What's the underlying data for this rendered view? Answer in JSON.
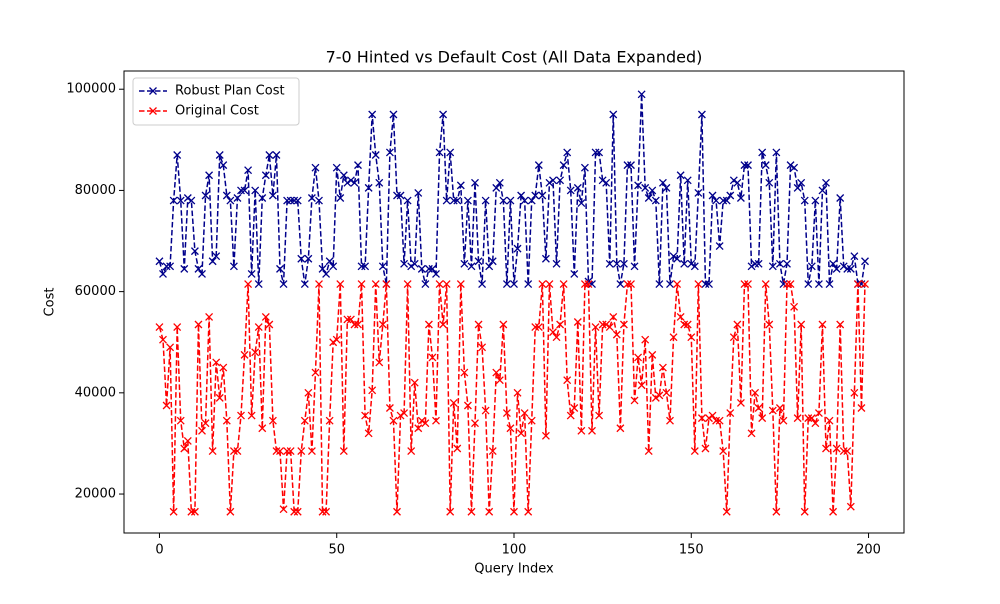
{
  "chart_data": {
    "type": "line",
    "title": "7-0 Hinted vs Default Cost (All Data Expanded)",
    "x_label": "Query Index",
    "y_label": "Cost",
    "x": [
      0,
      1,
      2,
      3,
      4,
      5,
      6,
      7,
      8,
      9,
      10,
      11,
      12,
      13,
      14,
      15,
      16,
      17,
      18,
      19,
      20,
      21,
      22,
      23,
      24,
      25,
      26,
      27,
      28,
      29,
      30,
      31,
      32,
      33,
      34,
      35,
      36,
      37,
      38,
      39,
      40,
      41,
      42,
      43,
      44,
      45,
      46,
      47,
      48,
      49,
      50,
      51,
      52,
      53,
      54,
      55,
      56,
      57,
      58,
      59,
      60,
      61,
      62,
      63,
      64,
      65,
      66,
      67,
      68,
      69,
      70,
      71,
      72,
      73,
      74,
      75,
      76,
      77,
      78,
      79,
      80,
      81,
      82,
      83,
      84,
      85,
      86,
      87,
      88,
      89,
      90,
      91,
      92,
      93,
      94,
      95,
      96,
      97,
      98,
      99,
      100,
      101,
      102,
      103,
      104,
      105,
      106,
      107,
      108,
      109,
      110,
      111,
      112,
      113,
      114,
      115,
      116,
      117,
      118,
      119,
      120,
      121,
      122,
      123,
      124,
      125,
      126,
      127,
      128,
      129,
      130,
      131,
      132,
      133,
      134,
      135,
      136,
      137,
      138,
      139,
      140,
      141,
      142,
      143,
      144,
      145,
      146,
      147,
      148,
      149,
      150,
      151,
      152,
      153,
      154,
      155,
      156,
      157,
      158,
      159,
      160,
      161,
      162,
      163,
      164,
      165,
      166,
      167,
      168,
      169,
      170,
      171,
      172,
      173,
      174,
      175,
      176,
      177,
      178,
      179,
      180,
      181,
      182,
      183,
      184,
      185,
      186,
      187,
      188,
      189,
      190,
      191,
      192,
      193,
      194,
      195,
      196,
      197,
      198,
      199
    ],
    "series": [
      {
        "name": "Robust Plan Cost",
        "color": "#00008b",
        "values": [
          66000,
          63500,
          65000,
          65000,
          78000,
          87000,
          78000,
          64500,
          78500,
          78000,
          68000,
          64500,
          63500,
          79000,
          83000,
          66000,
          67000,
          87000,
          85000,
          79000,
          78000,
          65000,
          78500,
          80000,
          80000,
          84000,
          63500,
          80000,
          61500,
          78500,
          83000,
          87000,
          79000,
          87000,
          64500,
          61500,
          78000,
          78000,
          78000,
          78000,
          66500,
          61500,
          66500,
          78500,
          84500,
          78000,
          64500,
          63500,
          66000,
          65000,
          84500,
          78500,
          83000,
          81500,
          82000,
          81500,
          85000,
          65000,
          65000,
          80500,
          95000,
          87000,
          81500,
          65000,
          61500,
          87500,
          95000,
          79000,
          79000,
          65500,
          78000,
          65000,
          65500,
          79500,
          64500,
          61500,
          64500,
          64500,
          63500,
          87500,
          95000,
          78000,
          87500,
          78000,
          78000,
          81000,
          65500,
          78000,
          65000,
          81500,
          66000,
          61500,
          78000,
          65000,
          66000,
          80500,
          81500,
          78000,
          61500,
          78000,
          61500,
          68500,
          79000,
          78000,
          61500,
          78000,
          79000,
          85000,
          79000,
          66500,
          81500,
          82000,
          65500,
          82000,
          85000,
          87500,
          80000,
          63500,
          80500,
          77500,
          84500,
          62000,
          61500,
          87500,
          87500,
          82000,
          81500,
          65500,
          95000,
          65500,
          61500,
          65500,
          85000,
          85000,
          65000,
          81000,
          99000,
          80500,
          78500,
          80000,
          78000,
          61500,
          81500,
          80500,
          61500,
          67000,
          66500,
          83000,
          65500,
          82000,
          65500,
          65000,
          79500,
          95000,
          61500,
          61500,
          79000,
          78000,
          69000,
          78000,
          78000,
          79000,
          82000,
          81500,
          78500,
          85000,
          85000,
          65000,
          65500,
          65500,
          87500,
          85000,
          81500,
          65000,
          87500,
          65500,
          61500,
          65500,
          85000,
          84500,
          80500,
          81500,
          78000,
          61500,
          65000,
          78000,
          61500,
          80000,
          81500,
          61500,
          65500,
          64500,
          78500,
          65000,
          64500,
          64500,
          67000,
          61500,
          61500,
          66000
        ]
      },
      {
        "name": "Original Cost",
        "color": "#ff0000",
        "values": [
          53000,
          50500,
          37500,
          49000,
          16500,
          53000,
          34500,
          29000,
          30500,
          16500,
          16500,
          53500,
          32500,
          34000,
          55000,
          28500,
          46000,
          39000,
          45000,
          34500,
          16500,
          28500,
          28500,
          35500,
          47500,
          61500,
          35500,
          48000,
          53000,
          33000,
          55000,
          53500,
          34500,
          28500,
          28500,
          17000,
          28500,
          28500,
          16500,
          16500,
          28500,
          34500,
          40000,
          28500,
          44000,
          61500,
          16500,
          16500,
          34500,
          50000,
          50500,
          61500,
          28500,
          54500,
          54500,
          53500,
          53500,
          61500,
          35500,
          32000,
          40500,
          61500,
          46000,
          53500,
          61500,
          37000,
          34500,
          16500,
          35500,
          36000,
          61500,
          28500,
          42000,
          33000,
          34500,
          34000,
          53500,
          47000,
          34500,
          61500,
          53500,
          61500,
          16500,
          38000,
          29000,
          61500,
          44000,
          37500,
          16500,
          34000,
          53500,
          49000,
          36500,
          16500,
          28500,
          44000,
          42500,
          53500,
          36000,
          33000,
          16500,
          40000,
          32000,
          36000,
          16500,
          34500,
          53000,
          53000,
          61500,
          31500,
          61500,
          52000,
          51000,
          53500,
          61500,
          42500,
          35500,
          37000,
          54000,
          32500,
          61500,
          61500,
          32500,
          53000,
          35500,
          53500,
          53500,
          53000,
          55000,
          51500,
          33000,
          53500,
          61500,
          61500,
          38500,
          47000,
          41500,
          50500,
          28500,
          47500,
          39000,
          39500,
          45000,
          40000,
          34500,
          51000,
          61500,
          55000,
          53500,
          53500,
          51000,
          28500,
          61500,
          35000,
          29000,
          35000,
          35500,
          34500,
          34500,
          28500,
          16500,
          36000,
          51000,
          53500,
          38000,
          61500,
          61500,
          32000,
          40000,
          37000,
          35000,
          61500,
          53500,
          36500,
          16500,
          37000,
          34500,
          61500,
          61500,
          57000,
          35000,
          53500,
          16500,
          35000,
          35000,
          34000,
          36000,
          53500,
          29000,
          34500,
          16500,
          29000,
          53500,
          28500,
          28500,
          17500,
          40000,
          61500,
          37000,
          61500
        ]
      }
    ],
    "xlim": [
      -10,
      210
    ],
    "ylim": [
      12300,
      103600
    ],
    "xticks": [
      0,
      50,
      100,
      150,
      200
    ],
    "yticks": [
      20000,
      40000,
      60000,
      80000,
      100000
    ],
    "legend": "upper left",
    "line_style": "dashed",
    "marker": "x"
  }
}
